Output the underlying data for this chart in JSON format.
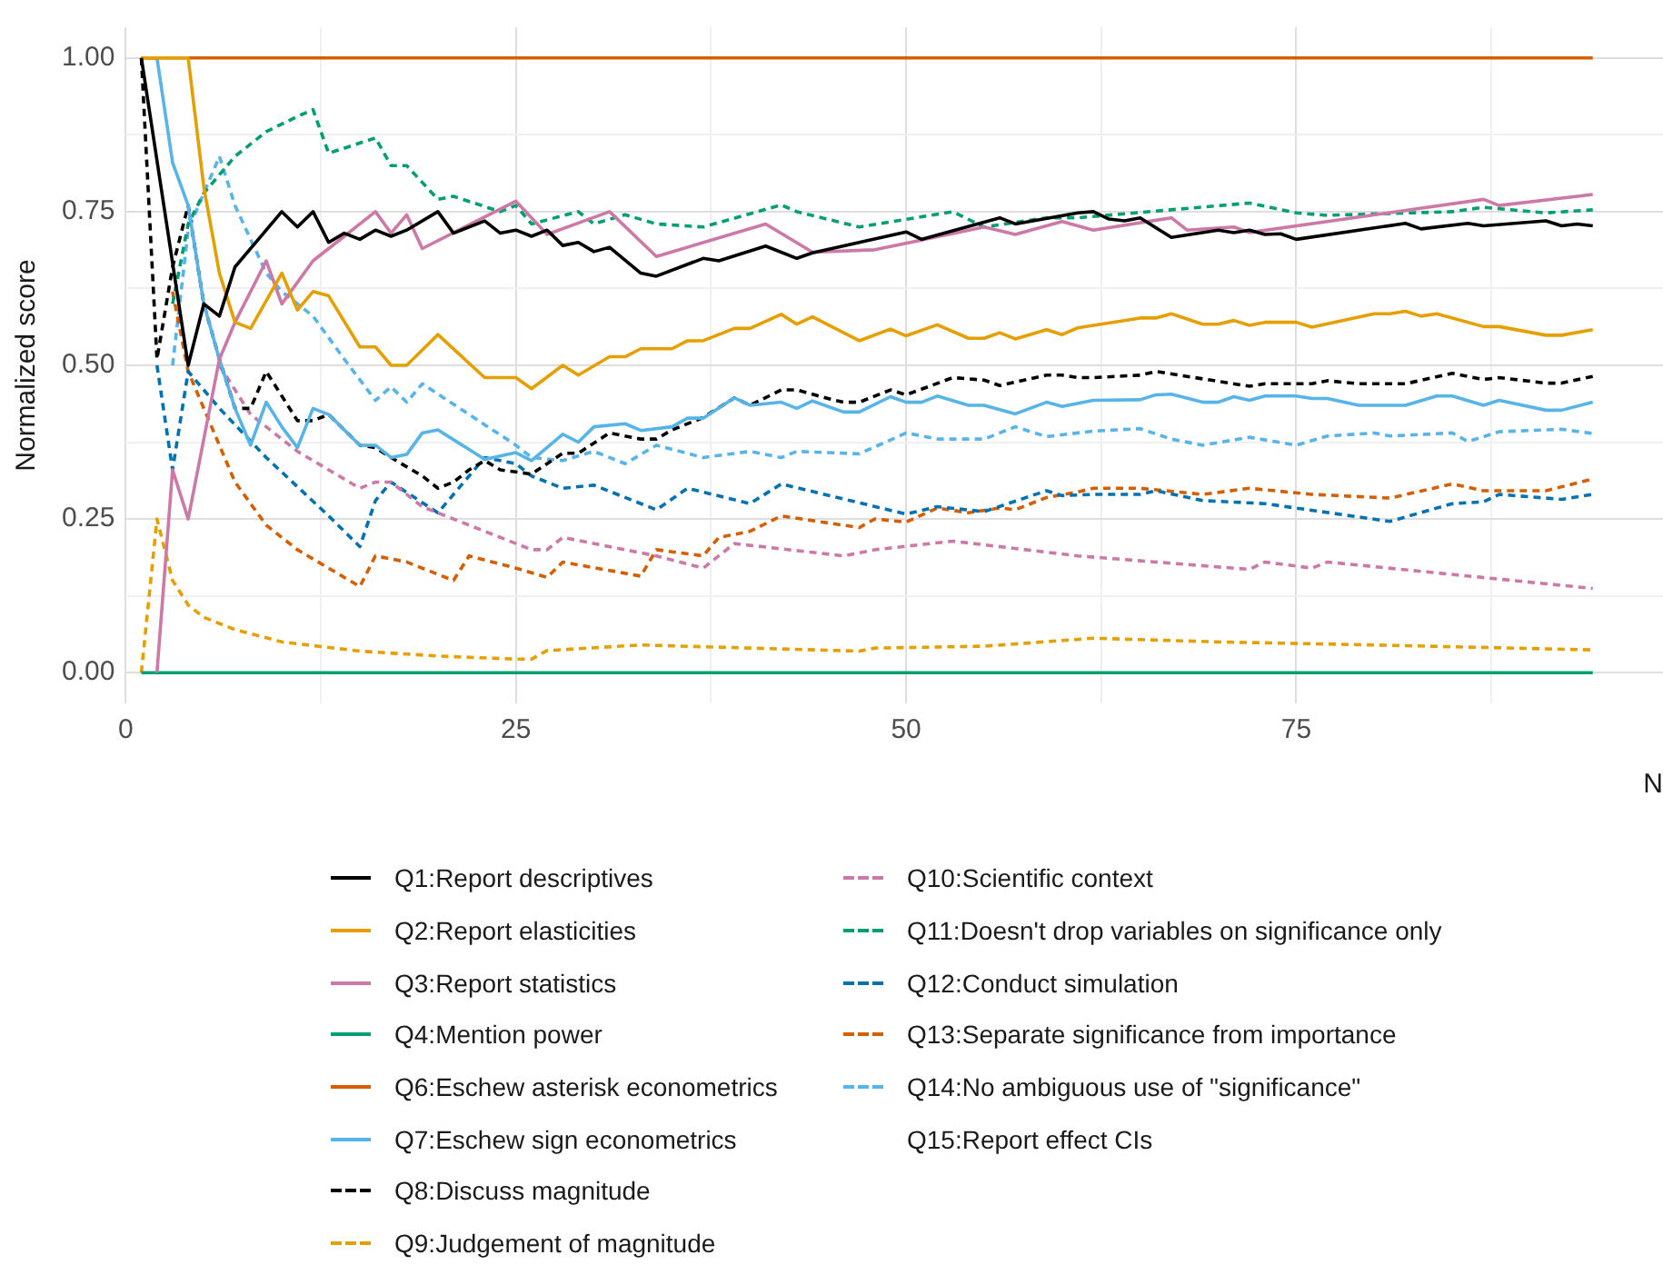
{
  "chart_data": {
    "type": "line",
    "xlabel": "N",
    "ylabel": "Normalized score",
    "xlim": [
      0,
      98.5
    ],
    "ylim": [
      -0.05,
      1.05
    ],
    "xticks": [
      0,
      {
        "value": 12.5,
        "label": null
      },
      25,
      {
        "value": 37.5,
        "label": null
      },
      50,
      {
        "value": 62.5,
        "label": null
      },
      75,
      {
        "value": 87.5,
        "label": null
      }
    ],
    "yticks": [
      {
        "value": 0,
        "label": "0.00"
      },
      {
        "value": 0.125,
        "label": null
      },
      {
        "value": 0.25,
        "label": "0.25"
      },
      {
        "value": 0.375,
        "label": null
      },
      {
        "value": 0.5,
        "label": "0.50"
      },
      {
        "value": 0.625,
        "label": null
      },
      {
        "value": 0.75,
        "label": "0.75"
      },
      {
        "value": 0.875,
        "label": null
      },
      {
        "value": 1,
        "label": "1.00"
      }
    ],
    "grid": true,
    "legend": "bottom",
    "series": [
      {
        "name": "Q1:Report descriptives",
        "color": "#000000",
        "line_style": "solid",
        "x": [
          1,
          4,
          5,
          6,
          7,
          9,
          10,
          11,
          12,
          13,
          14,
          15,
          16,
          17,
          18,
          20,
          21,
          23,
          24,
          25,
          26,
          27,
          28,
          29,
          30,
          31,
          33,
          34,
          37,
          38,
          41,
          43,
          44,
          50,
          51,
          56,
          57,
          61,
          62,
          63,
          64,
          65,
          67,
          70,
          71,
          72,
          73,
          74,
          75,
          82,
          83,
          86,
          87,
          91,
          92,
          93,
          94
        ],
        "values": [
          1,
          0.5,
          0.6,
          0.58,
          0.66,
          0.72,
          0.75,
          0.725,
          0.75,
          0.7,
          0.715,
          0.705,
          0.72,
          0.71,
          0.72,
          0.75,
          0.715,
          0.735,
          0.715,
          0.72,
          0.71,
          0.72,
          0.695,
          0.7,
          0.685,
          0.692,
          0.65,
          0.645,
          0.674,
          0.67,
          0.694,
          0.674,
          0.683,
          0.717,
          0.705,
          0.74,
          0.73,
          0.748,
          0.75,
          0.738,
          0.735,
          0.74,
          0.708,
          0.72,
          0.716,
          0.72,
          0.713,
          0.714,
          0.705,
          0.731,
          0.722,
          0.731,
          0.727,
          0.735,
          0.727,
          0.73,
          0.727
        ]
      },
      {
        "name": "Q2:Report elasticities",
        "color": "#e69f00",
        "line_style": "solid",
        "x": [
          1,
          4,
          5,
          6,
          7,
          8,
          10,
          11,
          12,
          13,
          15,
          16,
          17,
          18,
          20,
          23,
          25,
          26,
          28,
          29,
          31,
          32,
          33,
          35,
          36,
          37,
          39,
          40,
          42,
          43,
          44,
          47,
          49,
          50,
          52,
          54,
          55,
          56,
          57,
          59,
          60,
          61,
          65,
          66,
          67,
          69,
          70,
          71,
          72,
          73,
          75,
          76,
          80,
          81,
          82,
          83,
          84,
          87,
          88,
          91,
          92,
          94
        ],
        "values": [
          1,
          1,
          0.79,
          0.65,
          0.57,
          0.56,
          0.65,
          0.59,
          0.62,
          0.613,
          0.53,
          0.53,
          0.5,
          0.5,
          0.55,
          0.48,
          0.48,
          0.462,
          0.5,
          0.484,
          0.514,
          0.514,
          0.527,
          0.527,
          0.54,
          0.54,
          0.56,
          0.56,
          0.583,
          0.567,
          0.579,
          0.54,
          0.559,
          0.548,
          0.566,
          0.544,
          0.544,
          0.553,
          0.543,
          0.558,
          0.55,
          0.561,
          0.577,
          0.577,
          0.584,
          0.567,
          0.567,
          0.573,
          0.565,
          0.57,
          0.57,
          0.562,
          0.584,
          0.584,
          0.588,
          0.58,
          0.584,
          0.563,
          0.563,
          0.549,
          0.549,
          0.558
        ]
      },
      {
        "name": "Q3:Report statistics",
        "color": "#cc79a7",
        "line_style": "solid",
        "x": [
          2,
          3,
          4,
          6,
          7,
          9,
          10,
          12,
          14,
          16,
          17,
          18,
          19,
          25,
          27,
          31,
          34,
          41,
          44,
          48,
          55,
          57,
          60,
          62,
          67,
          68,
          71,
          72,
          87,
          88,
          94
        ],
        "values": [
          0,
          0.33,
          0.25,
          0.51,
          0.57,
          0.67,
          0.6,
          0.67,
          0.71,
          0.75,
          0.715,
          0.745,
          0.69,
          0.767,
          0.713,
          0.75,
          0.677,
          0.73,
          0.684,
          0.688,
          0.725,
          0.713,
          0.734,
          0.72,
          0.74,
          0.72,
          0.725,
          0.716,
          0.77,
          0.76,
          0.778
        ]
      },
      {
        "name": "Q4:Mention power",
        "color": "#009e73",
        "line_style": "solid",
        "x": [
          1,
          94
        ],
        "values": [
          0,
          0
        ]
      },
      {
        "name": "Q6:Eschew asterisk econometrics",
        "color": "#d55e00",
        "line_style": "solid",
        "x": [
          1,
          94
        ],
        "values": [
          1,
          1
        ]
      },
      {
        "name": "Q7:Eschew sign econometrics",
        "color": "#56b4e9",
        "line_style": "solid",
        "x": [
          1,
          2,
          3,
          4,
          5,
          6,
          7,
          8,
          9,
          10,
          11,
          12,
          13,
          15,
          16,
          17,
          18,
          19,
          20,
          23,
          25,
          26,
          28,
          29,
          30,
          32,
          33,
          35,
          36,
          37,
          39,
          40,
          42,
          43,
          44,
          46,
          47,
          49,
          50,
          51,
          52,
          54,
          55,
          57,
          59,
          60,
          62,
          65,
          66,
          67,
          69,
          70,
          71,
          72,
          73,
          75,
          76,
          77,
          79,
          82,
          84,
          85,
          87,
          88,
          91,
          92,
          94
        ],
        "values": [
          1,
          1,
          0.83,
          0.76,
          0.6,
          0.51,
          0.43,
          0.37,
          0.44,
          0.4,
          0.366,
          0.43,
          0.42,
          0.37,
          0.37,
          0.35,
          0.355,
          0.39,
          0.395,
          0.347,
          0.358,
          0.345,
          0.388,
          0.375,
          0.4,
          0.405,
          0.394,
          0.4,
          0.414,
          0.414,
          0.447,
          0.435,
          0.44,
          0.43,
          0.442,
          0.424,
          0.424,
          0.449,
          0.44,
          0.44,
          0.45,
          0.435,
          0.435,
          0.421,
          0.44,
          0.433,
          0.443,
          0.444,
          0.452,
          0.453,
          0.44,
          0.44,
          0.449,
          0.443,
          0.45,
          0.45,
          0.446,
          0.446,
          0.435,
          0.435,
          0.45,
          0.45,
          0.435,
          0.443,
          0.427,
          0.427,
          0.44
        ]
      },
      {
        "name": "Q8:Discuss magnitude",
        "color": "#000000",
        "line_style": "dashed",
        "x": [
          1,
          2,
          3,
          4,
          5,
          6,
          7,
          8,
          9,
          10,
          11,
          12,
          13,
          15,
          16,
          17,
          18,
          19,
          20,
          21,
          22,
          23,
          24,
          26,
          28,
          29,
          31,
          33,
          34,
          35,
          37,
          39,
          40,
          42,
          43,
          45,
          46,
          47,
          49,
          50,
          53,
          55,
          56,
          59,
          60,
          61,
          62,
          65,
          66,
          69,
          72,
          73,
          76,
          77,
          79,
          82,
          85,
          87,
          88,
          91,
          92,
          94
        ],
        "values": [
          1,
          0.51,
          0.66,
          0.76,
          0.6,
          0.51,
          0.43,
          0.43,
          0.49,
          0.45,
          0.41,
          0.41,
          0.42,
          0.37,
          0.366,
          0.35,
          0.335,
          0.32,
          0.3,
          0.31,
          0.33,
          0.345,
          0.33,
          0.323,
          0.357,
          0.357,
          0.39,
          0.38,
          0.38,
          0.395,
          0.415,
          0.447,
          0.435,
          0.46,
          0.46,
          0.446,
          0.44,
          0.44,
          0.46,
          0.452,
          0.48,
          0.476,
          0.467,
          0.484,
          0.484,
          0.48,
          0.48,
          0.484,
          0.49,
          0.478,
          0.466,
          0.47,
          0.47,
          0.475,
          0.47,
          0.47,
          0.487,
          0.477,
          0.48,
          0.471,
          0.471,
          0.482
        ]
      },
      {
        "name": "Q9:Judgement of magnitude",
        "color": "#e69f00",
        "line_style": "dashed",
        "x": [
          1,
          2,
          3,
          4,
          5,
          7,
          10,
          15,
          20,
          25,
          26,
          27,
          33,
          40,
          47,
          48,
          55,
          62,
          70,
          80,
          94
        ],
        "values": [
          0,
          0.25,
          0.15,
          0.11,
          0.09,
          0.07,
          0.05,
          0.035,
          0.027,
          0.022,
          0.022,
          0.036,
          0.045,
          0.04,
          0.035,
          0.04,
          0.043,
          0.056,
          0.05,
          0.045,
          0.037
        ]
      },
      {
        "name": "Q10:Scientific context",
        "color": "#cc79a7",
        "line_style": "dashed",
        "x": [
          6,
          8,
          10,
          11,
          13,
          15,
          16,
          17,
          19,
          25,
          26,
          27,
          28,
          34,
          37,
          39,
          46,
          48,
          53,
          61,
          72,
          73,
          76,
          77,
          94
        ],
        "values": [
          0.5,
          0.42,
          0.38,
          0.36,
          0.33,
          0.3,
          0.31,
          0.31,
          0.27,
          0.21,
          0.2,
          0.2,
          0.22,
          0.19,
          0.17,
          0.21,
          0.19,
          0.2,
          0.214,
          0.19,
          0.168,
          0.18,
          0.17,
          0.18,
          0.137
        ]
      },
      {
        "name": "Q11:Doesn't drop variables on significance only",
        "color": "#009e73",
        "line_style": "dashed",
        "x": [
          3,
          4,
          5,
          7,
          9,
          11,
          12,
          13,
          16,
          17,
          18,
          20,
          21,
          24,
          25,
          26,
          29,
          30,
          32,
          34,
          37,
          42,
          43,
          47,
          53,
          55,
          59,
          61,
          72,
          75,
          77,
          85,
          87,
          91,
          94
        ],
        "values": [
          0.6,
          0.73,
          0.78,
          0.84,
          0.88,
          0.905,
          0.916,
          0.845,
          0.87,
          0.825,
          0.825,
          0.77,
          0.775,
          0.75,
          0.76,
          0.73,
          0.75,
          0.73,
          0.745,
          0.73,
          0.725,
          0.761,
          0.75,
          0.725,
          0.75,
          0.725,
          0.74,
          0.74,
          0.764,
          0.748,
          0.744,
          0.75,
          0.757,
          0.748,
          0.753
        ]
      },
      {
        "name": "Q12:Conduct simulation",
        "color": "#0072b2",
        "line_style": "dashed",
        "x": [
          2,
          3,
          4,
          6,
          9,
          13,
          15,
          16,
          17,
          20,
          23,
          25,
          26,
          28,
          30,
          34,
          36,
          40,
          42,
          50,
          52,
          55,
          59,
          60,
          62,
          65,
          66,
          69,
          73,
          81,
          85,
          87,
          88,
          92,
          94
        ],
        "values": [
          0.5,
          0.33,
          0.49,
          0.43,
          0.35,
          0.255,
          0.205,
          0.28,
          0.31,
          0.26,
          0.35,
          0.34,
          0.32,
          0.3,
          0.305,
          0.265,
          0.3,
          0.275,
          0.307,
          0.258,
          0.27,
          0.262,
          0.296,
          0.288,
          0.29,
          0.29,
          0.296,
          0.28,
          0.275,
          0.246,
          0.275,
          0.278,
          0.29,
          0.282,
          0.29
        ]
      },
      {
        "name": "Q13:Separate significance from importance",
        "color": "#d55e00",
        "line_style": "dashed",
        "x": [
          3,
          4,
          7,
          9,
          11,
          15,
          16,
          18,
          21,
          22,
          25,
          27,
          28,
          33,
          34,
          37,
          38,
          40,
          42,
          47,
          48,
          50,
          52,
          54,
          56,
          57,
          59,
          61,
          62,
          65,
          69,
          72,
          76,
          81,
          85,
          87,
          91,
          94
        ],
        "values": [
          0.62,
          0.49,
          0.31,
          0.24,
          0.2,
          0.14,
          0.19,
          0.18,
          0.15,
          0.19,
          0.17,
          0.155,
          0.18,
          0.157,
          0.2,
          0.19,
          0.22,
          0.23,
          0.255,
          0.236,
          0.25,
          0.245,
          0.268,
          0.26,
          0.268,
          0.265,
          0.285,
          0.294,
          0.3,
          0.3,
          0.29,
          0.3,
          0.29,
          0.284,
          0.307,
          0.296,
          0.296,
          0.315
        ]
      },
      {
        "name": "Q14:No ambiguous use of \"significance\"",
        "color": "#56b4e9",
        "line_style": "dashed",
        "x": [
          3,
          4,
          5,
          6,
          7,
          9,
          10,
          12,
          14,
          16,
          17,
          18,
          19,
          25,
          26,
          28,
          30,
          32,
          34,
          37,
          40,
          42,
          43,
          47,
          50,
          52,
          55,
          57,
          59,
          61,
          62,
          65,
          67,
          69,
          72,
          75,
          77,
          80,
          81,
          85,
          86,
          88,
          92,
          94
        ],
        "values": [
          0.5,
          0.72,
          0.78,
          0.84,
          0.76,
          0.65,
          0.62,
          0.58,
          0.51,
          0.443,
          0.465,
          0.44,
          0.47,
          0.37,
          0.35,
          0.345,
          0.36,
          0.34,
          0.37,
          0.35,
          0.36,
          0.35,
          0.36,
          0.356,
          0.39,
          0.38,
          0.38,
          0.4,
          0.384,
          0.39,
          0.393,
          0.397,
          0.38,
          0.37,
          0.383,
          0.37,
          0.385,
          0.39,
          0.385,
          0.39,
          0.376,
          0.392,
          0.396,
          0.389
        ]
      },
      {
        "name": "Q15:Report effect CIs"
      }
    ]
  }
}
